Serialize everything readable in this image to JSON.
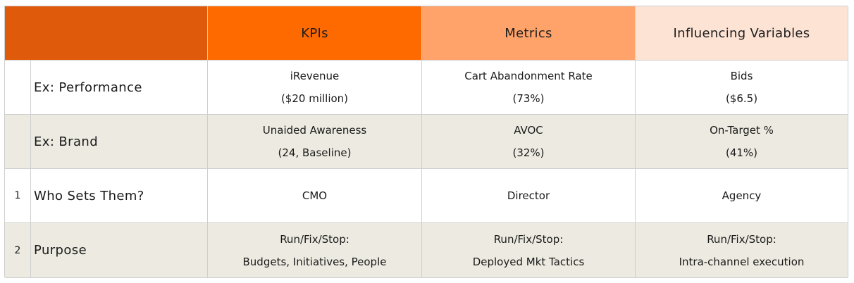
{
  "header": {
    "kpis": "KPIs",
    "metrics": "Metrics",
    "influencing_variables": "Influencing Variables"
  },
  "colors": {
    "corner": "#e05a0c",
    "kpis_header": "#ff6a00",
    "metrics_header": "#ffa36a",
    "influencing_header": "#fde3d4",
    "alt_row": "#edebe1"
  },
  "rows": [
    {
      "number": "",
      "label": "Ex: Performance",
      "kpis": [
        "iRevenue",
        "($20 million)"
      ],
      "metrics": [
        "Cart Abandonment Rate",
        "(73%)"
      ],
      "influencing": [
        "Bids",
        "($6.5)"
      ]
    },
    {
      "number": "",
      "label": "Ex: Brand",
      "kpis": [
        "Unaided Awareness",
        "(24, Baseline)"
      ],
      "metrics": [
        "AVOC",
        "(32%)"
      ],
      "influencing": [
        "On-Target %",
        "(41%)"
      ]
    },
    {
      "number": "1",
      "label": "Who Sets Them?",
      "kpis": [
        "CMO"
      ],
      "metrics": [
        "Director"
      ],
      "influencing": [
        "Agency"
      ]
    },
    {
      "number": "2",
      "label": "Purpose",
      "kpis": [
        "Run/Fix/Stop:",
        "Budgets, Initiatives, People"
      ],
      "metrics": [
        "Run/Fix/Stop:",
        "Deployed Mkt Tactics"
      ],
      "influencing": [
        "Run/Fix/Stop:",
        "Intra-channel execution"
      ]
    }
  ]
}
